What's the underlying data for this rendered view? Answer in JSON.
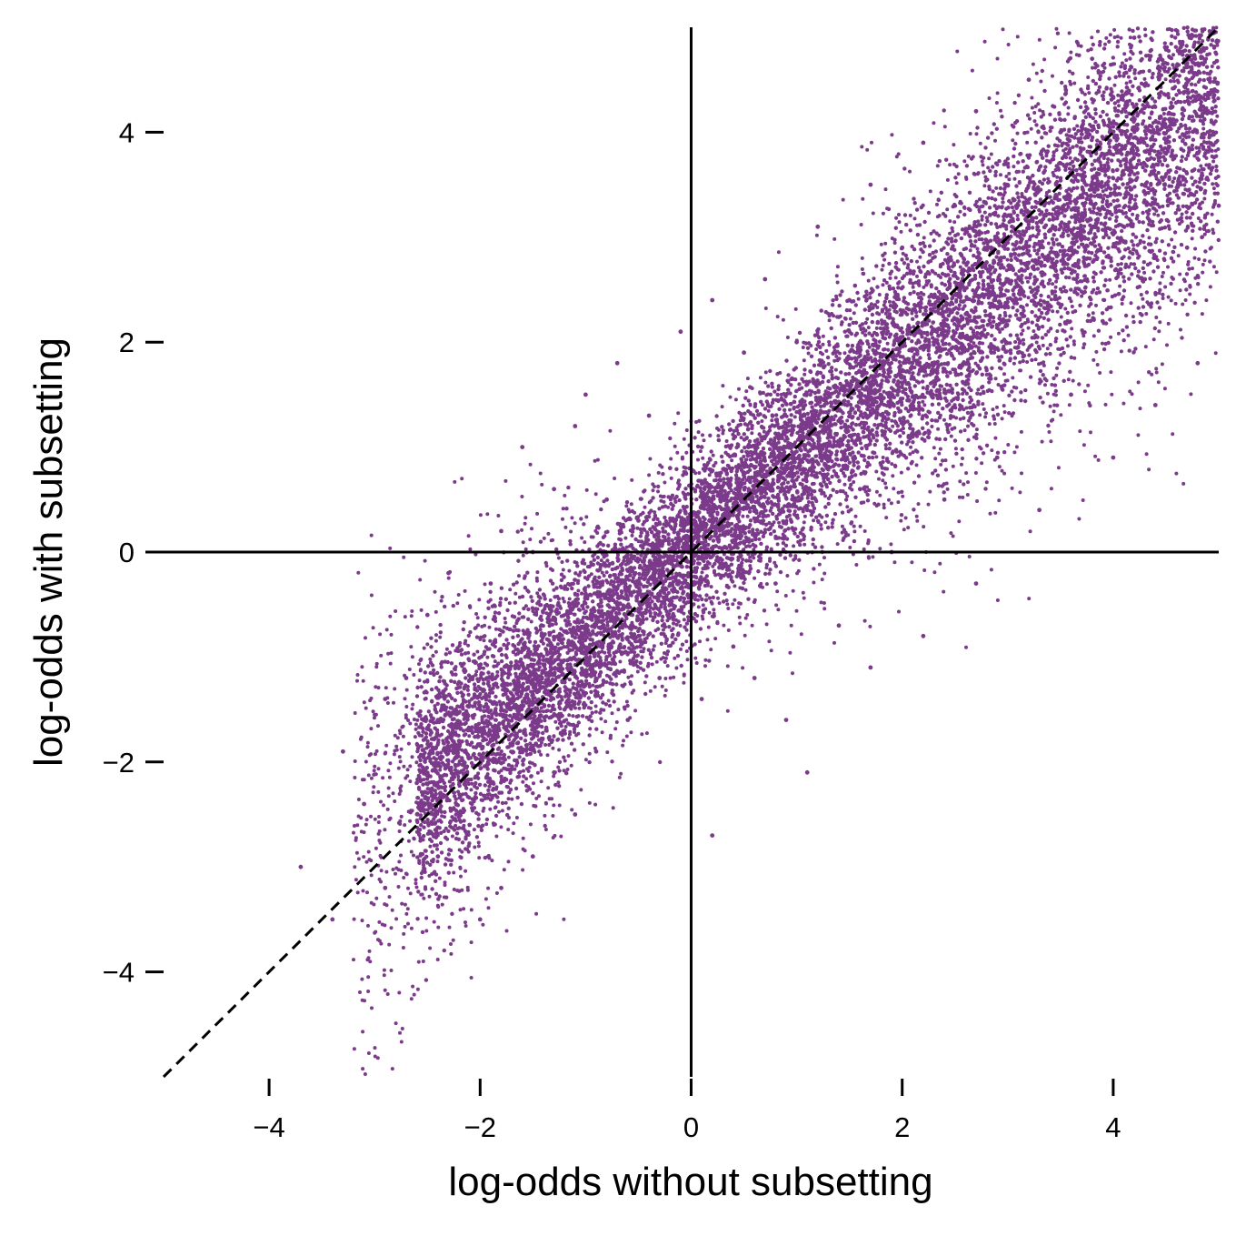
{
  "chart_data": {
    "type": "scatter",
    "title": "",
    "xlabel": "log-odds without subsetting",
    "ylabel": "log-odds with subsetting",
    "xlim": [
      -5,
      5
    ],
    "ylim": [
      -5,
      5
    ],
    "x_ticks": [
      {
        "value": -4,
        "label": "−4"
      },
      {
        "value": -2,
        "label": "−2"
      },
      {
        "value": 0,
        "label": "0"
      },
      {
        "value": 2,
        "label": "2"
      },
      {
        "value": 4,
        "label": "4"
      }
    ],
    "y_ticks": [
      {
        "value": -4,
        "label": "−4"
      },
      {
        "value": -2,
        "label": "−2"
      },
      {
        "value": 0,
        "label": "0"
      },
      {
        "value": 2,
        "label": "2"
      },
      {
        "value": 4,
        "label": "4"
      }
    ],
    "reference_lines": {
      "horizontal_y": 0,
      "vertical_x": 0,
      "diagonal": "y = x (dashed)"
    },
    "grid": false,
    "legend": "none",
    "point_color": "#7b3a8a",
    "series": [
      {
        "description_points": [
          [
            -3.7,
            -3.0
          ],
          [
            -3.4,
            -3.5
          ],
          [
            -3.3,
            -1.9
          ],
          [
            -3.1,
            -2.4
          ],
          [
            -2.9,
            -3.2
          ],
          [
            -2.9,
            -1.4
          ],
          [
            -2.7,
            -1.2
          ],
          [
            -2.6,
            -2.2
          ],
          [
            -2.5,
            -0.6
          ],
          [
            -2.4,
            -2.9
          ],
          [
            -2.4,
            -1.6
          ],
          [
            -2.3,
            -0.2
          ],
          [
            -2.2,
            -1.8
          ],
          [
            -2.1,
            -2.6
          ],
          [
            -2.0,
            -3.5
          ],
          [
            -2.0,
            -1.1
          ],
          [
            -1.9,
            -0.3
          ],
          [
            -1.9,
            -2.2
          ],
          [
            -1.8,
            0.2
          ],
          [
            -1.8,
            -3.2
          ],
          [
            -1.7,
            -1.4
          ],
          [
            -1.6,
            1.0
          ],
          [
            -1.5,
            -2.9
          ],
          [
            -1.5,
            0.0
          ],
          [
            -1.4,
            -0.8
          ],
          [
            -1.3,
            -2.1
          ],
          [
            -1.3,
            0.6
          ],
          [
            -1.2,
            -1.5
          ],
          [
            -1.1,
            1.2
          ],
          [
            -1.1,
            -2.5
          ],
          [
            -1.0,
            -0.4
          ],
          [
            -1.0,
            1.5
          ],
          [
            -0.9,
            -1.9
          ],
          [
            -0.8,
            0.5
          ],
          [
            -0.8,
            -1.0
          ],
          [
            -0.7,
            1.8
          ],
          [
            -0.6,
            -1.6
          ],
          [
            -0.5,
            0.3
          ],
          [
            -0.5,
            -0.8
          ],
          [
            -0.4,
            1.3
          ],
          [
            -0.3,
            -1.2
          ],
          [
            -0.2,
            0.8
          ],
          [
            -0.2,
            -0.5
          ],
          [
            -0.1,
            2.1
          ],
          [
            0.0,
            -0.1
          ],
          [
            0.1,
            1.0
          ],
          [
            0.1,
            -1.4
          ],
          [
            0.2,
            2.4
          ],
          [
            0.2,
            -2.7
          ],
          [
            0.3,
            0.5
          ],
          [
            0.4,
            -0.9
          ],
          [
            0.5,
            1.9
          ],
          [
            0.5,
            0.1
          ],
          [
            0.6,
            -1.2
          ],
          [
            0.7,
            2.6
          ],
          [
            0.8,
            0.9
          ],
          [
            0.8,
            -0.3
          ],
          [
            0.9,
            -1.6
          ],
          [
            1.0,
            2.0
          ],
          [
            1.1,
            0.4
          ],
          [
            1.1,
            -2.1
          ],
          [
            1.2,
            3.1
          ],
          [
            1.3,
            1.2
          ],
          [
            1.4,
            -0.7
          ],
          [
            1.5,
            2.4
          ],
          [
            1.6,
            0.6
          ],
          [
            1.7,
            3.5
          ],
          [
            1.7,
            -1.1
          ],
          [
            1.8,
            1.6
          ],
          [
            1.9,
            0.0
          ],
          [
            2.0,
            2.9
          ],
          [
            2.1,
            1.1
          ],
          [
            2.2,
            3.9
          ],
          [
            2.2,
            -0.8
          ],
          [
            2.3,
            2.0
          ],
          [
            2.4,
            0.5
          ],
          [
            2.5,
            3.3
          ],
          [
            2.6,
            1.6
          ],
          [
            2.7,
            4.2
          ],
          [
            2.7,
            -0.3
          ],
          [
            2.8,
            2.5
          ],
          [
            2.9,
            0.9
          ],
          [
            3.0,
            3.7
          ],
          [
            3.1,
            1.9
          ],
          [
            3.2,
            4.5
          ],
          [
            3.3,
            0.4
          ],
          [
            3.4,
            2.8
          ],
          [
            3.5,
            4.0
          ],
          [
            3.6,
            1.5
          ],
          [
            3.7,
            3.2
          ],
          [
            3.8,
            4.7
          ],
          [
            3.9,
            2.2
          ],
          [
            4.0,
            0.9
          ],
          [
            4.1,
            3.6
          ],
          [
            4.2,
            4.9
          ],
          [
            4.3,
            2.6
          ],
          [
            4.4,
            1.4
          ],
          [
            4.5,
            3.9
          ],
          [
            4.6,
            4.6
          ],
          [
            4.7,
            2.9
          ],
          [
            4.8,
            1.8
          ],
          [
            4.9,
            4.2
          ],
          [
            5.0,
            3.3
          ]
        ]
      }
    ]
  }
}
